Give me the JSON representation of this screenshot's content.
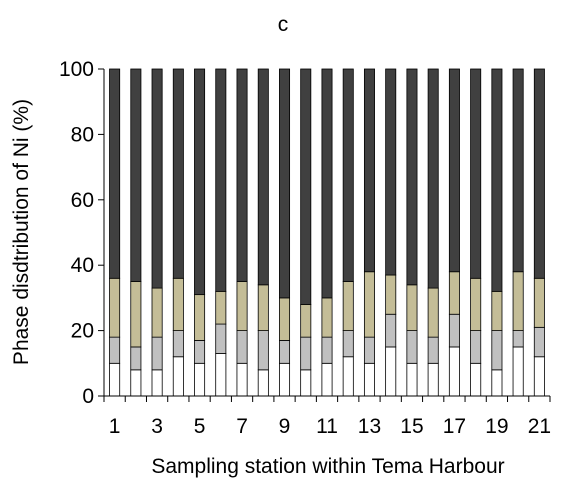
{
  "chart_data": {
    "type": "bar",
    "stacked": true,
    "title": "c",
    "xlabel": "Sampling station within Tema Harbour",
    "ylabel": "Phase disdtribution of Ni (%)",
    "ylim": [
      0,
      100
    ],
    "yticks": [
      0,
      20,
      40,
      60,
      80,
      100
    ],
    "categories": [
      "1",
      "2",
      "3",
      "4",
      "5",
      "6",
      "7",
      "8",
      "9",
      "10",
      "11",
      "12",
      "13",
      "14",
      "15",
      "16",
      "17",
      "18",
      "19",
      "20",
      "21"
    ],
    "x_tick_labels_shown": [
      "1",
      "3",
      "5",
      "7",
      "9",
      "11",
      "13",
      "15",
      "17",
      "19",
      "21"
    ],
    "grid": false,
    "legend": "none",
    "series": [
      {
        "color": "#ffffff",
        "values": [
          10,
          8,
          8,
          12,
          10,
          13,
          10,
          8,
          10,
          8,
          10,
          12,
          10,
          15,
          10,
          10,
          15,
          10,
          8,
          15,
          12
        ]
      },
      {
        "color": "#c0c0c0",
        "values": [
          8,
          7,
          10,
          8,
          7,
          9,
          10,
          12,
          7,
          10,
          8,
          8,
          8,
          10,
          10,
          8,
          10,
          10,
          12,
          5,
          9
        ]
      },
      {
        "color": "#c4bd97",
        "values": [
          18,
          20,
          15,
          16,
          14,
          10,
          15,
          14,
          13,
          10,
          12,
          15,
          20,
          12,
          14,
          15,
          13,
          16,
          12,
          18,
          15
        ]
      },
      {
        "color": "#404040",
        "values": [
          64,
          65,
          67,
          64,
          69,
          68,
          65,
          66,
          70,
          72,
          70,
          65,
          62,
          63,
          66,
          67,
          62,
          64,
          68,
          62,
          64
        ]
      }
    ]
  }
}
